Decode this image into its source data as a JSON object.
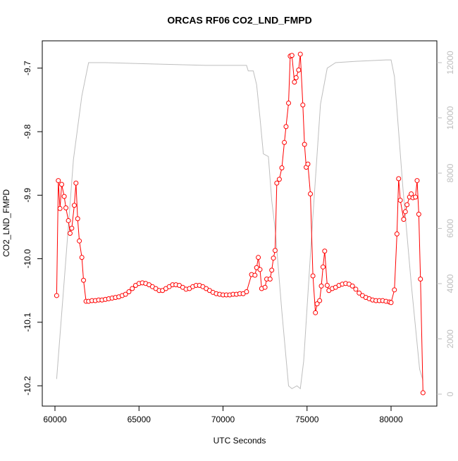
{
  "chart_data": {
    "type": "line",
    "title": "ORCAS RF06 CO2_LND_FMPD",
    "xlabel": "UTC Seconds",
    "ylabel": "CO2_LND_FMPD",
    "xlim": [
      59245,
      82725
    ],
    "xticks": [
      60000,
      65000,
      70000,
      75000,
      80000
    ],
    "ylim": [
      -10.232,
      -9.657
    ],
    "yticks": [
      -10.2,
      -10.1,
      {
        "value": -10,
        "label": "-10.0"
      },
      -9.9,
      -9.8,
      -9.7
    ],
    "y2lim": [
      -433,
      12790
    ],
    "y2ticks": [
      0,
      2000,
      4000,
      6000,
      8000,
      10000,
      12000
    ],
    "series": [
      {
        "color": "#ff0000",
        "markers": true,
        "x": [
          60100,
          60200,
          60300,
          60400,
          60550,
          60650,
          60800,
          60900,
          61000,
          61150,
          61250,
          61350,
          61450,
          61600,
          61700,
          61850,
          62000,
          62200,
          62400,
          62600,
          62800,
          63000,
          63200,
          63400,
          63600,
          63800,
          64000,
          64200,
          64400,
          64600,
          64800,
          65000,
          65200,
          65400,
          65600,
          65800,
          66000,
          66200,
          66400,
          66600,
          66800,
          67000,
          67200,
          67400,
          67600,
          67800,
          68000,
          68200,
          68400,
          68600,
          68800,
          69000,
          69200,
          69400,
          69600,
          69800,
          70000,
          70200,
          70400,
          70600,
          70800,
          71000,
          71200,
          71400,
          71700,
          71900,
          72000,
          72100,
          72200,
          72300,
          72500,
          72600,
          72800,
          72900,
          73000,
          73100,
          73200,
          73350,
          73500,
          73650,
          73750,
          73900,
          74000,
          74100,
          74250,
          74350,
          74500,
          74600,
          74750,
          74850,
          74950,
          75050,
          75200,
          75350,
          75500,
          75600,
          75750,
          75850,
          75950,
          76050,
          76200,
          76300,
          76500,
          76700,
          76900,
          77100,
          77300,
          77500,
          77700,
          77900,
          78100,
          78300,
          78500,
          78700,
          78900,
          79100,
          79300,
          79500,
          79700,
          79900,
          80000,
          80200,
          80350,
          80450,
          80550,
          80750,
          80850,
          80950,
          81100,
          81200,
          81300,
          81450,
          81550,
          81650,
          81750,
          81900
        ],
        "values": [
          -10.058,
          -9.877,
          -9.921,
          -9.883,
          -9.902,
          -9.92,
          -9.94,
          -9.96,
          -9.952,
          -9.916,
          -9.881,
          -9.937,
          -9.972,
          -9.998,
          -10.034,
          -10.067,
          -10.067,
          -10.066,
          -10.066,
          -10.065,
          -10.065,
          -10.064,
          -10.063,
          -10.062,
          -10.061,
          -10.06,
          -10.058,
          -10.056,
          -10.052,
          -10.047,
          -10.042,
          -10.039,
          -10.038,
          -10.039,
          -10.041,
          -10.044,
          -10.047,
          -10.05,
          -10.05,
          -10.047,
          -10.044,
          -10.041,
          -10.041,
          -10.042,
          -10.045,
          -10.048,
          -10.047,
          -10.044,
          -10.042,
          -10.042,
          -10.044,
          -10.047,
          -10.05,
          -10.053,
          -10.055,
          -10.056,
          -10.057,
          -10.057,
          -10.057,
          -10.056,
          -10.056,
          -10.055,
          -10.055,
          -10.052,
          -10.025,
          -10.026,
          -10.014,
          -9.998,
          -10.017,
          -10.047,
          -10.045,
          -10.032,
          -10.032,
          -10.018,
          -9.999,
          -9.987,
          -9.881,
          -9.875,
          -9.857,
          -9.817,
          -9.792,
          -9.755,
          -9.681,
          -9.68,
          -9.722,
          -9.715,
          -9.703,
          -9.678,
          -9.758,
          -9.82,
          -9.856,
          -9.851,
          -9.898,
          -10.027,
          -10.085,
          -10.071,
          -10.066,
          -10.043,
          -10.013,
          -9.988,
          -10.042,
          -10.05,
          -10.047,
          -10.045,
          -10.042,
          -10.04,
          -10.039,
          -10.04,
          -10.043,
          -10.048,
          -10.054,
          -10.058,
          -10.061,
          -10.063,
          -10.065,
          -10.066,
          -10.066,
          -10.066,
          -10.067,
          -10.068,
          -10.069,
          -10.049,
          -9.961,
          -9.874,
          -9.908,
          -9.938,
          -9.926,
          -9.915,
          -9.903,
          -9.898,
          -9.904,
          -9.903,
          -9.877,
          -9.93,
          -10.032,
          -10.211
        ]
      },
      {
        "color": "#bebebe",
        "axis": "y2",
        "markers": false,
        "x": [
          60100,
          60600,
          61100,
          61600,
          62000,
          63000,
          66000,
          69000,
          71400,
          71500,
          71800,
          72000,
          72200,
          72400,
          72700,
          72900,
          73100,
          73500,
          73900,
          74100,
          74400,
          74600,
          74800,
          75300,
          75800,
          76200,
          76700,
          78000,
          79700,
          80000,
          80200,
          80700,
          81200,
          81700,
          81900
        ],
        "values": [
          550,
          4500,
          8500,
          10800,
          12000,
          12000,
          11950,
          11900,
          11900,
          11700,
          11700,
          11200,
          10000,
          8700,
          8600,
          7000,
          6000,
          3000,
          300,
          200,
          300,
          200,
          1200,
          6000,
          10500,
          11800,
          12000,
          12050,
          12100,
          12100,
          11500,
          7500,
          4000,
          900,
          500
        ]
      }
    ]
  }
}
